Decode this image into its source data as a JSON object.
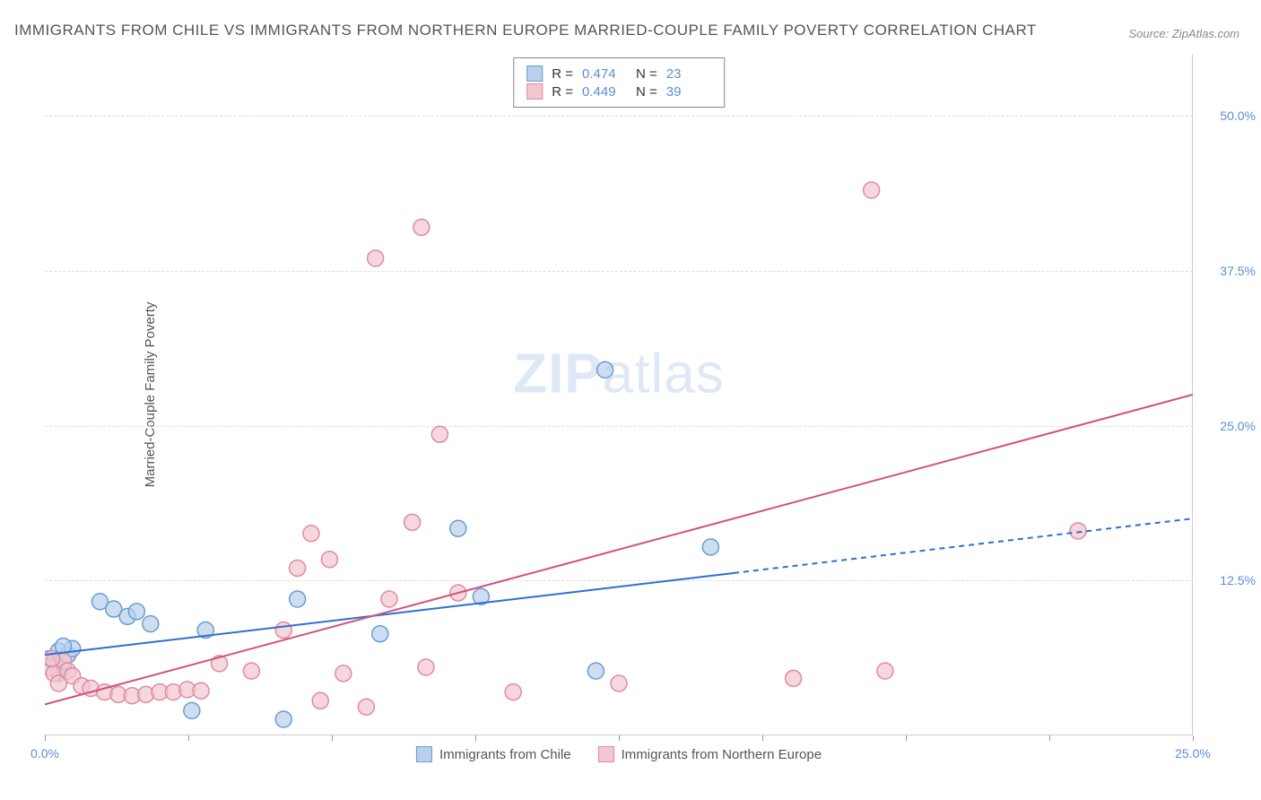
{
  "title": "IMMIGRANTS FROM CHILE VS IMMIGRANTS FROM NORTHERN EUROPE MARRIED-COUPLE FAMILY POVERTY CORRELATION CHART",
  "source": "Source: ZipAtlas.com",
  "ylabel": "Married-Couple Family Poverty",
  "watermark_zip": "ZIP",
  "watermark_atlas": "atlas",
  "chart": {
    "type": "scatter",
    "xlim": [
      0,
      25
    ],
    "ylim": [
      0,
      55
    ],
    "x_ticks_labeled": [
      {
        "v": 0,
        "label": "0.0%"
      },
      {
        "v": 25,
        "label": "25.0%"
      }
    ],
    "x_ticks_unlabeled": [
      3.125,
      6.25,
      9.375,
      12.5,
      15.625,
      18.75,
      21.875
    ],
    "y_ticks": [
      {
        "v": 12.5,
        "label": "12.5%"
      },
      {
        "v": 25.0,
        "label": "25.0%"
      },
      {
        "v": 37.5,
        "label": "37.5%"
      },
      {
        "v": 50.0,
        "label": "50.0%"
      }
    ],
    "gridlines_y": [
      12.5,
      25.0,
      37.5,
      50.0
    ],
    "background_color": "#ffffff",
    "grid_color": "#dddddd",
    "axis_color": "#cccccc",
    "tick_label_color": "#5b8dd6",
    "marker_radius": 9,
    "marker_stroke_width": 1.5,
    "line_width": 2,
    "series": [
      {
        "name": "Immigrants from Chile",
        "color_fill": "#b9d0ec",
        "color_stroke": "#6b9bd1",
        "line_color": "#2e6fd1",
        "R": "0.474",
        "N": "23",
        "trend": {
          "x1": 0,
          "y1": 6.5,
          "x2": 25,
          "y2": 17.5,
          "solid_until_x": 15
        },
        "points": [
          [
            0.1,
            6.2
          ],
          [
            0.2,
            6.0
          ],
          [
            0.3,
            6.8
          ],
          [
            0.4,
            5.5
          ],
          [
            0.5,
            6.5
          ],
          [
            0.6,
            7.0
          ],
          [
            1.2,
            10.8
          ],
          [
            1.5,
            10.2
          ],
          [
            1.8,
            9.6
          ],
          [
            2.0,
            10.0
          ],
          [
            2.3,
            9.0
          ],
          [
            3.2,
            2.0
          ],
          [
            3.5,
            8.5
          ],
          [
            5.2,
            1.3
          ],
          [
            5.5,
            11.0
          ],
          [
            7.3,
            8.2
          ],
          [
            9.0,
            16.7
          ],
          [
            9.5,
            11.2
          ],
          [
            12.0,
            5.2
          ],
          [
            12.2,
            29.5
          ],
          [
            14.5,
            15.2
          ],
          [
            0.3,
            5.0
          ],
          [
            0.4,
            7.2
          ]
        ]
      },
      {
        "name": "Immigrants from Northern Europe",
        "color_fill": "#f3c6d0",
        "color_stroke": "#e08aa0",
        "line_color": "#d1527a",
        "R": "0.449",
        "N": "39",
        "trend": {
          "x1": 0,
          "y1": 2.5,
          "x2": 25,
          "y2": 27.5,
          "solid_until_x": 25
        },
        "points": [
          [
            0.1,
            5.5
          ],
          [
            0.2,
            5.0
          ],
          [
            0.3,
            4.2
          ],
          [
            0.4,
            6.0
          ],
          [
            0.5,
            5.2
          ],
          [
            0.6,
            4.8
          ],
          [
            0.8,
            4.0
          ],
          [
            1.0,
            3.8
          ],
          [
            1.3,
            3.5
          ],
          [
            1.6,
            3.3
          ],
          [
            1.9,
            3.2
          ],
          [
            2.2,
            3.3
          ],
          [
            2.5,
            3.5
          ],
          [
            2.8,
            3.5
          ],
          [
            3.1,
            3.7
          ],
          [
            3.4,
            3.6
          ],
          [
            3.8,
            5.8
          ],
          [
            4.5,
            5.2
          ],
          [
            5.2,
            8.5
          ],
          [
            5.5,
            13.5
          ],
          [
            5.8,
            16.3
          ],
          [
            6.0,
            2.8
          ],
          [
            6.2,
            14.2
          ],
          [
            6.5,
            5.0
          ],
          [
            7.0,
            2.3
          ],
          [
            7.2,
            38.5
          ],
          [
            7.5,
            11.0
          ],
          [
            8.0,
            17.2
          ],
          [
            8.2,
            41.0
          ],
          [
            8.3,
            5.5
          ],
          [
            8.6,
            24.3
          ],
          [
            9.0,
            11.5
          ],
          [
            10.2,
            3.5
          ],
          [
            12.5,
            4.2
          ],
          [
            16.3,
            4.6
          ],
          [
            18.0,
            44.0
          ],
          [
            18.3,
            5.2
          ],
          [
            22.5,
            16.5
          ],
          [
            0.15,
            6.2
          ]
        ]
      }
    ]
  },
  "legend_bottom": [
    {
      "label": "Immigrants from Chile",
      "fill": "#b9d0ec",
      "stroke": "#6b9bd1"
    },
    {
      "label": "Immigrants from Northern Europe",
      "fill": "#f3c6d0",
      "stroke": "#e08aa0"
    }
  ]
}
